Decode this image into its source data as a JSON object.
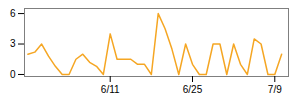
{
  "chart_data": {
    "type": "line",
    "x": [
      0,
      1,
      2,
      3,
      4,
      5,
      6,
      7,
      8,
      9,
      10,
      11,
      12,
      13,
      14,
      15,
      16,
      17,
      18,
      19,
      20,
      21,
      22,
      23,
      24,
      25,
      26,
      27,
      28,
      29,
      30,
      31,
      32,
      33,
      34,
      35,
      36,
      37
    ],
    "values": [
      2,
      2.2,
      3,
      1.8,
      0.8,
      0,
      0,
      1.5,
      2,
      1.2,
      0.8,
      0,
      4,
      1.5,
      1.5,
      1.5,
      1,
      1,
      0,
      6,
      4.5,
      2.5,
      0,
      3,
      1,
      0,
      0,
      3,
      3,
      0,
      3,
      1,
      0,
      3.5,
      3,
      0,
      0,
      2
    ],
    "color": "#f5a623",
    "xlim": [
      -0.5,
      38
    ],
    "xticks": [
      {
        "value": 12,
        "label": "6/11"
      },
      {
        "value": 24,
        "label": "6/25"
      },
      {
        "value": 36,
        "label": "7/9"
      }
    ],
    "ylim": [
      -0.2,
      6.5
    ],
    "yticks": [
      0,
      3,
      6
    ]
  }
}
